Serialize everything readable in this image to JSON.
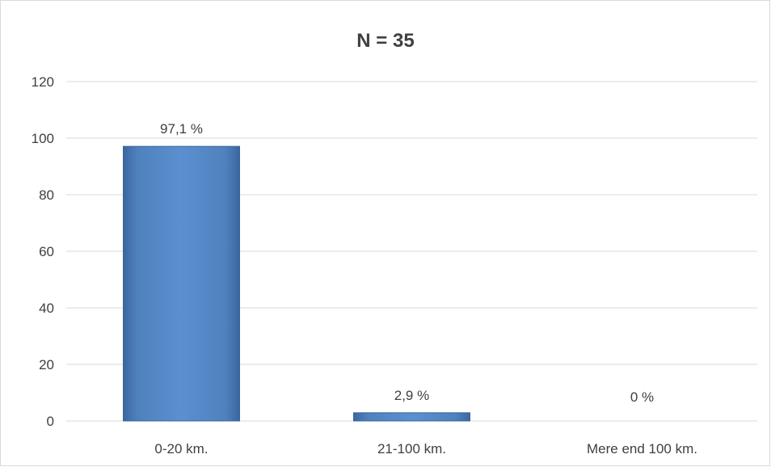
{
  "chart_data": {
    "type": "bar",
    "title": "N = 35",
    "categories": [
      "0-20 km.",
      "21-100 km.",
      "Mere end 100 km."
    ],
    "values": [
      97.1,
      2.9,
      0
    ],
    "data_labels": [
      "97,1 %",
      "2,9 %",
      "0 %"
    ],
    "y_ticks": [
      "0",
      "20",
      "40",
      "60",
      "80",
      "100",
      "120"
    ],
    "ylim": [
      0,
      120
    ],
    "xlabel": "",
    "ylabel": "",
    "grid": true,
    "legend": "none",
    "bar_color": "#4f81bd",
    "bar_edge_color": "#3a6496",
    "gridline_color": "#d9d9d9",
    "text_color": "#404040"
  }
}
